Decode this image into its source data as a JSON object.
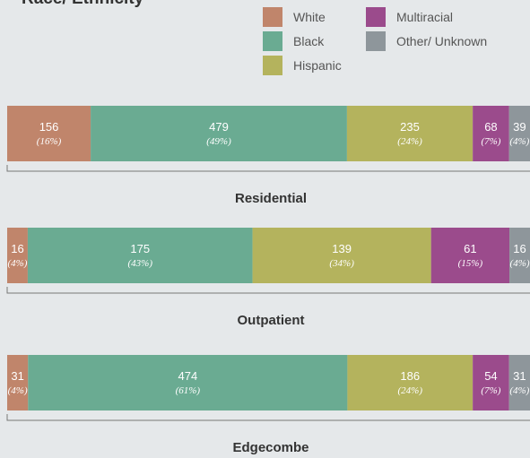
{
  "chart_data": {
    "type": "stacked-bar-horizontal",
    "title": "Race/ Ethnicity",
    "categories": [
      "Residential",
      "Outpatient",
      "Edgecombe"
    ],
    "series": [
      {
        "name": "White",
        "color": "#c0856b",
        "values": [
          156,
          16,
          31
        ],
        "percent_labels": [
          "(16%)",
          "(4%)",
          "(4%)"
        ]
      },
      {
        "name": "Black",
        "color": "#6aab92",
        "values": [
          479,
          175,
          474
        ],
        "percent_labels": [
          "(49%)",
          "(43%)",
          "(61%)"
        ]
      },
      {
        "name": "Hispanic",
        "color": "#b4b35d",
        "values": [
          235,
          139,
          186
        ],
        "percent_labels": [
          "(24%)",
          "(34%)",
          "(24%)"
        ]
      },
      {
        "name": "Multiracial",
        "color": "#9b4b8c",
        "values": [
          68,
          61,
          54
        ],
        "percent_labels": [
          "(7%)",
          "(15%)",
          "(7%)"
        ]
      },
      {
        "name": "Other/ Unknown",
        "color": "#8e969b",
        "values": [
          39,
          16,
          31
        ],
        "percent_labels": [
          "(4%)",
          "(4%)",
          "(4%)"
        ]
      }
    ]
  }
}
